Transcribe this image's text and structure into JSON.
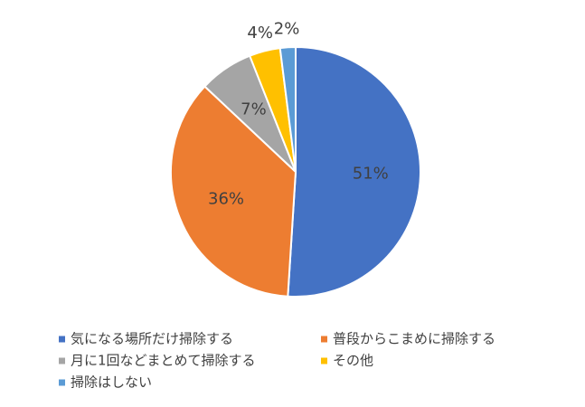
{
  "chart_data": {
    "type": "pie",
    "categories": [
      "気になる場所だけ掃除する",
      "普段からこまめに掃除する",
      "月に1回などまとめて掃除する",
      "その他",
      "掃除はしない"
    ],
    "values": [
      51,
      36,
      7,
      4,
      2
    ],
    "value_labels": [
      "51%",
      "36%",
      "7%",
      "4%",
      "2%"
    ],
    "colors": [
      "#4472c4",
      "#ed7d31",
      "#a5a5a5",
      "#ffc000",
      "#5b9bd5"
    ],
    "legend": "bottom"
  }
}
